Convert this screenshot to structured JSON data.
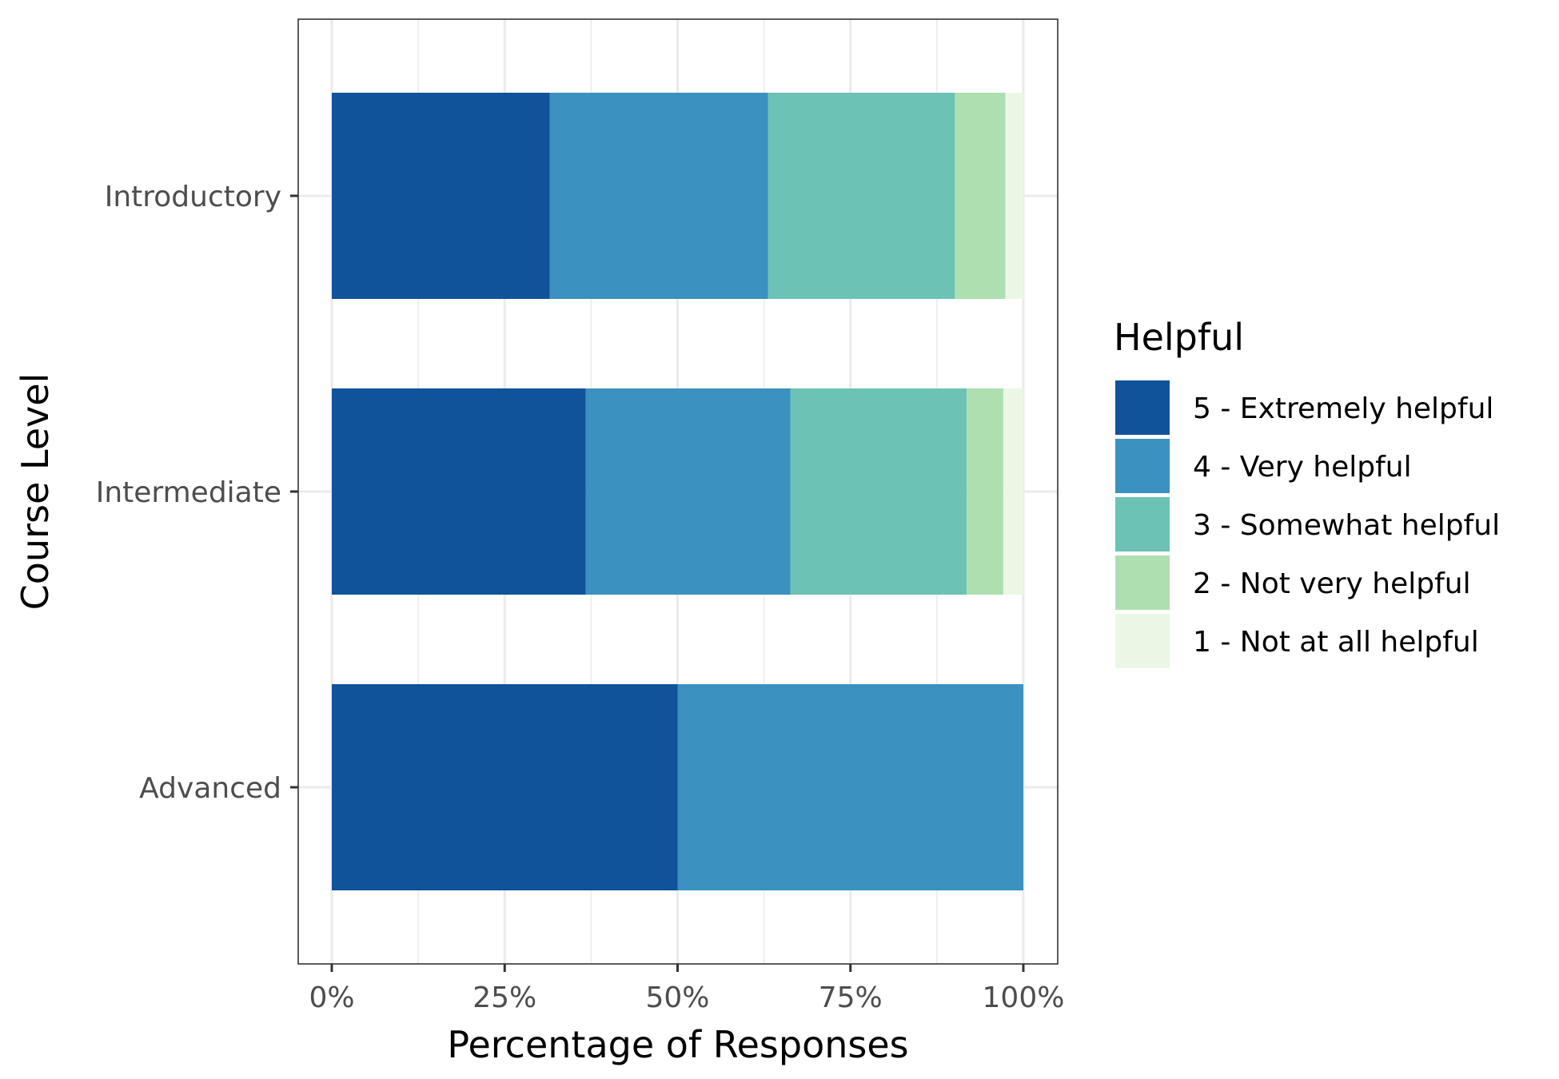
{
  "chart_data": {
    "type": "bar",
    "orientation": "horizontal",
    "stacked": true,
    "categories": [
      "Introductory",
      "Intermediate",
      "Advanced"
    ],
    "series": [
      {
        "name": "5 - Extremely helpful",
        "color": "#10539b",
        "values": [
          31.5,
          36.7,
          50.0
        ]
      },
      {
        "name": "4 - Very helpful",
        "color": "#3b91bf",
        "values": [
          31.6,
          29.6,
          50.0
        ]
      },
      {
        "name": "3 - Somewhat helpful",
        "color": "#6cc3b5",
        "values": [
          27.0,
          25.5,
          0
        ]
      },
      {
        "name": "2 - Not very helpful",
        "color": "#addfb0",
        "values": [
          7.3,
          5.3,
          0
        ]
      },
      {
        "name": "1 - Not at all helpful",
        "color": "#ebf7e4",
        "values": [
          2.6,
          2.9,
          0
        ]
      }
    ],
    "xlabel": "Percentage of Responses",
    "ylabel": "Course Level",
    "xlim": [
      0,
      100
    ],
    "x_ticks": [
      "0%",
      "25%",
      "50%",
      "75%",
      "100%"
    ],
    "legend_title": "Helpful",
    "legend_position": "right",
    "grid": true
  }
}
